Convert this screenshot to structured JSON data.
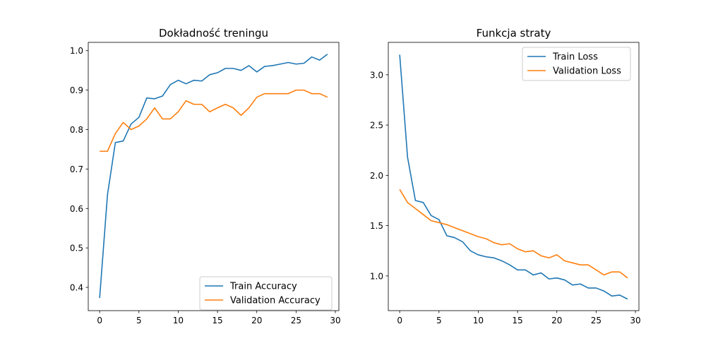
{
  "chart_data": [
    {
      "type": "line",
      "title": "Dokładność treningu",
      "xlabel": "",
      "ylabel": "",
      "xlim": [
        -1.45,
        30.45
      ],
      "ylim": [
        0.341,
        1.021
      ],
      "xticks": [
        0,
        5,
        10,
        15,
        20,
        25,
        30
      ],
      "yticks": [
        0.4,
        0.5,
        0.6,
        0.7,
        0.8,
        0.9,
        1.0
      ],
      "ytick_labels": [
        "0.4",
        "0.5",
        "0.6",
        "0.7",
        "0.8",
        "0.9",
        "1.0"
      ],
      "grid": false,
      "legend_position": "bottom-right",
      "series": [
        {
          "name": "Train Accuracy",
          "color": "#1f77b4",
          "x": [
            0,
            1,
            2,
            3,
            4,
            5,
            6,
            7,
            8,
            9,
            10,
            11,
            12,
            13,
            14,
            15,
            16,
            17,
            18,
            19,
            20,
            21,
            22,
            23,
            24,
            25,
            26,
            27,
            28,
            29
          ],
          "values": [
            0.373,
            0.635,
            0.767,
            0.771,
            0.814,
            0.831,
            0.88,
            0.878,
            0.885,
            0.914,
            0.925,
            0.916,
            0.925,
            0.923,
            0.939,
            0.944,
            0.955,
            0.955,
            0.95,
            0.962,
            0.946,
            0.96,
            0.962,
            0.966,
            0.97,
            0.966,
            0.968,
            0.984,
            0.976,
            0.991
          ]
        },
        {
          "name": "Validation Accuracy",
          "color": "#ff7f0e",
          "x": [
            0,
            1,
            2,
            3,
            4,
            5,
            6,
            7,
            8,
            9,
            10,
            11,
            12,
            13,
            14,
            15,
            16,
            17,
            18,
            19,
            20,
            21,
            22,
            23,
            24,
            25,
            26,
            27,
            28,
            29
          ],
          "values": [
            0.745,
            0.745,
            0.79,
            0.818,
            0.8,
            0.809,
            0.827,
            0.855,
            0.827,
            0.827,
            0.845,
            0.873,
            0.864,
            0.864,
            0.845,
            0.855,
            0.864,
            0.855,
            0.836,
            0.855,
            0.882,
            0.891,
            0.891,
            0.891,
            0.891,
            0.9,
            0.9,
            0.891,
            0.891,
            0.882
          ]
        }
      ]
    },
    {
      "type": "line",
      "title": "Funkcja straty",
      "xlabel": "",
      "ylabel": "",
      "xlim": [
        -1.45,
        30.45
      ],
      "ylim": [
        0.655,
        3.322
      ],
      "xticks": [
        0,
        5,
        10,
        15,
        20,
        25,
        30
      ],
      "yticks": [
        1.0,
        1.5,
        2.0,
        2.5,
        3.0
      ],
      "ytick_labels": [
        "1.0",
        "1.5",
        "2.0",
        "2.5",
        "3.0"
      ],
      "grid": false,
      "legend_position": "top-right",
      "series": [
        {
          "name": "Train Loss",
          "color": "#1f77b4",
          "x": [
            0,
            1,
            2,
            3,
            4,
            5,
            6,
            7,
            8,
            9,
            10,
            11,
            12,
            13,
            14,
            15,
            16,
            17,
            18,
            19,
            20,
            21,
            22,
            23,
            24,
            25,
            26,
            27,
            28,
            29
          ],
          "values": [
            3.2,
            2.18,
            1.75,
            1.73,
            1.6,
            1.56,
            1.4,
            1.38,
            1.34,
            1.25,
            1.21,
            1.19,
            1.18,
            1.15,
            1.11,
            1.06,
            1.06,
            1.01,
            1.03,
            0.97,
            0.98,
            0.96,
            0.91,
            0.92,
            0.88,
            0.88,
            0.85,
            0.8,
            0.81,
            0.77
          ]
        },
        {
          "name": "Validation Loss",
          "color": "#ff7f0e",
          "x": [
            0,
            1,
            2,
            3,
            4,
            5,
            6,
            7,
            8,
            9,
            10,
            11,
            12,
            13,
            14,
            15,
            16,
            17,
            18,
            19,
            20,
            21,
            22,
            23,
            24,
            25,
            26,
            27,
            28,
            29
          ],
          "values": [
            1.86,
            1.73,
            1.67,
            1.61,
            1.55,
            1.53,
            1.51,
            1.48,
            1.45,
            1.42,
            1.39,
            1.37,
            1.33,
            1.31,
            1.32,
            1.27,
            1.24,
            1.25,
            1.2,
            1.18,
            1.21,
            1.15,
            1.13,
            1.11,
            1.11,
            1.06,
            1.01,
            1.04,
            1.04,
            0.98
          ]
        }
      ]
    }
  ]
}
